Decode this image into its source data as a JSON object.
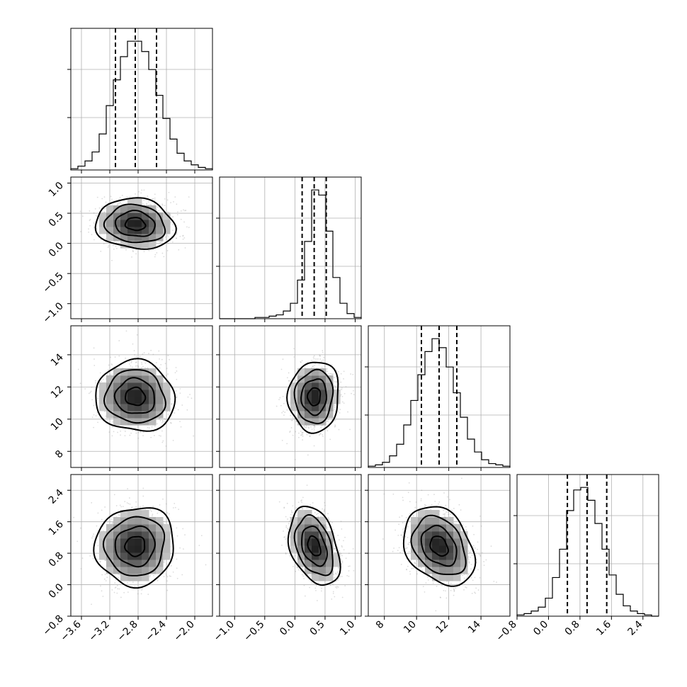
{
  "chart_data": {
    "type": "corner",
    "title": "",
    "parameters": [
      {
        "label": "",
        "range": [
          -3.75,
          -1.75
        ],
        "ticks": [
          -3.6,
          -3.2,
          -2.8,
          -2.4,
          -2.0
        ],
        "tick_labels": [
          "−3.6",
          "−3.2",
          "−2.8",
          "−2.4",
          "−2.0"
        ],
        "quantiles": [
          -3.12,
          -2.84,
          -2.54
        ],
        "mean": -2.84,
        "sd": 0.28
      },
      {
        "label": "",
        "range": [
          -1.25,
          1.1
        ],
        "ticks": [
          -1.0,
          -0.5,
          0.0,
          0.5,
          1.0
        ],
        "tick_labels": [
          "−1.0",
          "−0.5",
          "0.0",
          "0.5",
          "1.0"
        ],
        "quantiles": [
          0.12,
          0.32,
          0.52
        ],
        "mean": 0.32,
        "sd": 0.21
      },
      {
        "label": "",
        "range": [
          7.0,
          15.8
        ],
        "ticks": [
          8,
          10,
          12,
          14
        ],
        "tick_labels": [
          "8",
          "10",
          "12",
          "14"
        ],
        "quantiles": [
          10.3,
          11.4,
          12.5
        ],
        "mean": 11.4,
        "sd": 1.1
      },
      {
        "label": "",
        "range": [
          -0.8,
          2.8
        ],
        "ticks": [
          -0.8,
          0.0,
          0.8,
          1.6,
          2.4
        ],
        "tick_labels": [
          "−0.8",
          "0.0",
          "0.8",
          "1.6",
          "2.4"
        ],
        "quantiles": [
          0.48,
          0.98,
          1.48
        ],
        "mean": 0.98,
        "sd": 0.5
      }
    ],
    "histograms": [
      {
        "param": 0,
        "bins": [
          -3.75,
          -1.75
        ],
        "counts": [
          1,
          3,
          7,
          14,
          28,
          50,
          70,
          88,
          100,
          100,
          92,
          78,
          58,
          40,
          24,
          13,
          7,
          4,
          2,
          1
        ]
      },
      {
        "param": 1,
        "bins": [
          -1.25,
          1.1
        ],
        "counts": [
          0,
          0,
          0,
          0,
          0,
          1,
          1,
          2,
          3,
          6,
          12,
          30,
          60,
          100,
          96,
          68,
          32,
          12,
          4,
          1
        ]
      },
      {
        "param": 2,
        "bins": [
          7.0,
          15.8
        ],
        "counts": [
          1,
          2,
          4,
          9,
          18,
          33,
          52,
          72,
          90,
          100,
          93,
          78,
          58,
          39,
          22,
          12,
          6,
          3,
          2,
          1
        ]
      },
      {
        "param": 3,
        "bins": [
          -0.8,
          2.8
        ],
        "counts": [
          1,
          2,
          4,
          7,
          14,
          30,
          52,
          82,
          98,
          100,
          90,
          72,
          52,
          32,
          17,
          8,
          4,
          2,
          1,
          0
        ]
      }
    ],
    "pairs": [
      {
        "x": 0,
        "y": 1,
        "correlation": -0.1
      },
      {
        "x": 0,
        "y": 2,
        "correlation": -0.05
      },
      {
        "x": 1,
        "y": 2,
        "correlation": 0.05
      },
      {
        "x": 0,
        "y": 3,
        "correlation": 0.05
      },
      {
        "x": 1,
        "y": 3,
        "correlation": -0.35
      },
      {
        "x": 2,
        "y": 3,
        "correlation": -0.3
      }
    ],
    "contour_levels_sigma": [
      0.5,
      1.0,
      1.5,
      2.0
    ],
    "grid": true,
    "legend": "none"
  }
}
